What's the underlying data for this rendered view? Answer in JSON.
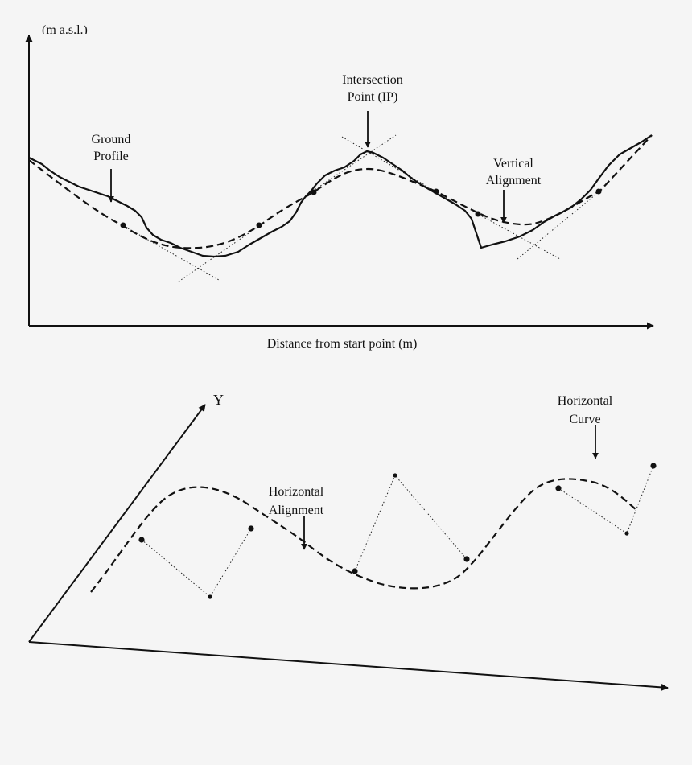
{
  "top_panel": {
    "y_axis_label_cropped": "(m a.s.l.)",
    "x_axis_label": "Distance from start point (m)",
    "labels": {
      "ip_line1": "Intersection",
      "ip_line2": "Point (IP)",
      "ground_line1": "Ground",
      "ground_line2": "Profile",
      "vertical_line1": "Vertical",
      "vertical_line2": "Alignment"
    }
  },
  "bottom_panel": {
    "y_axis_label": "Y",
    "labels": {
      "halign_line1": "Horizontal",
      "halign_line2": "Alignment",
      "hcurve_line1": "Horizontal",
      "hcurve_line2": "Curve"
    }
  },
  "colors": {
    "ink": "#111111",
    "background": "#f5f5f5"
  }
}
